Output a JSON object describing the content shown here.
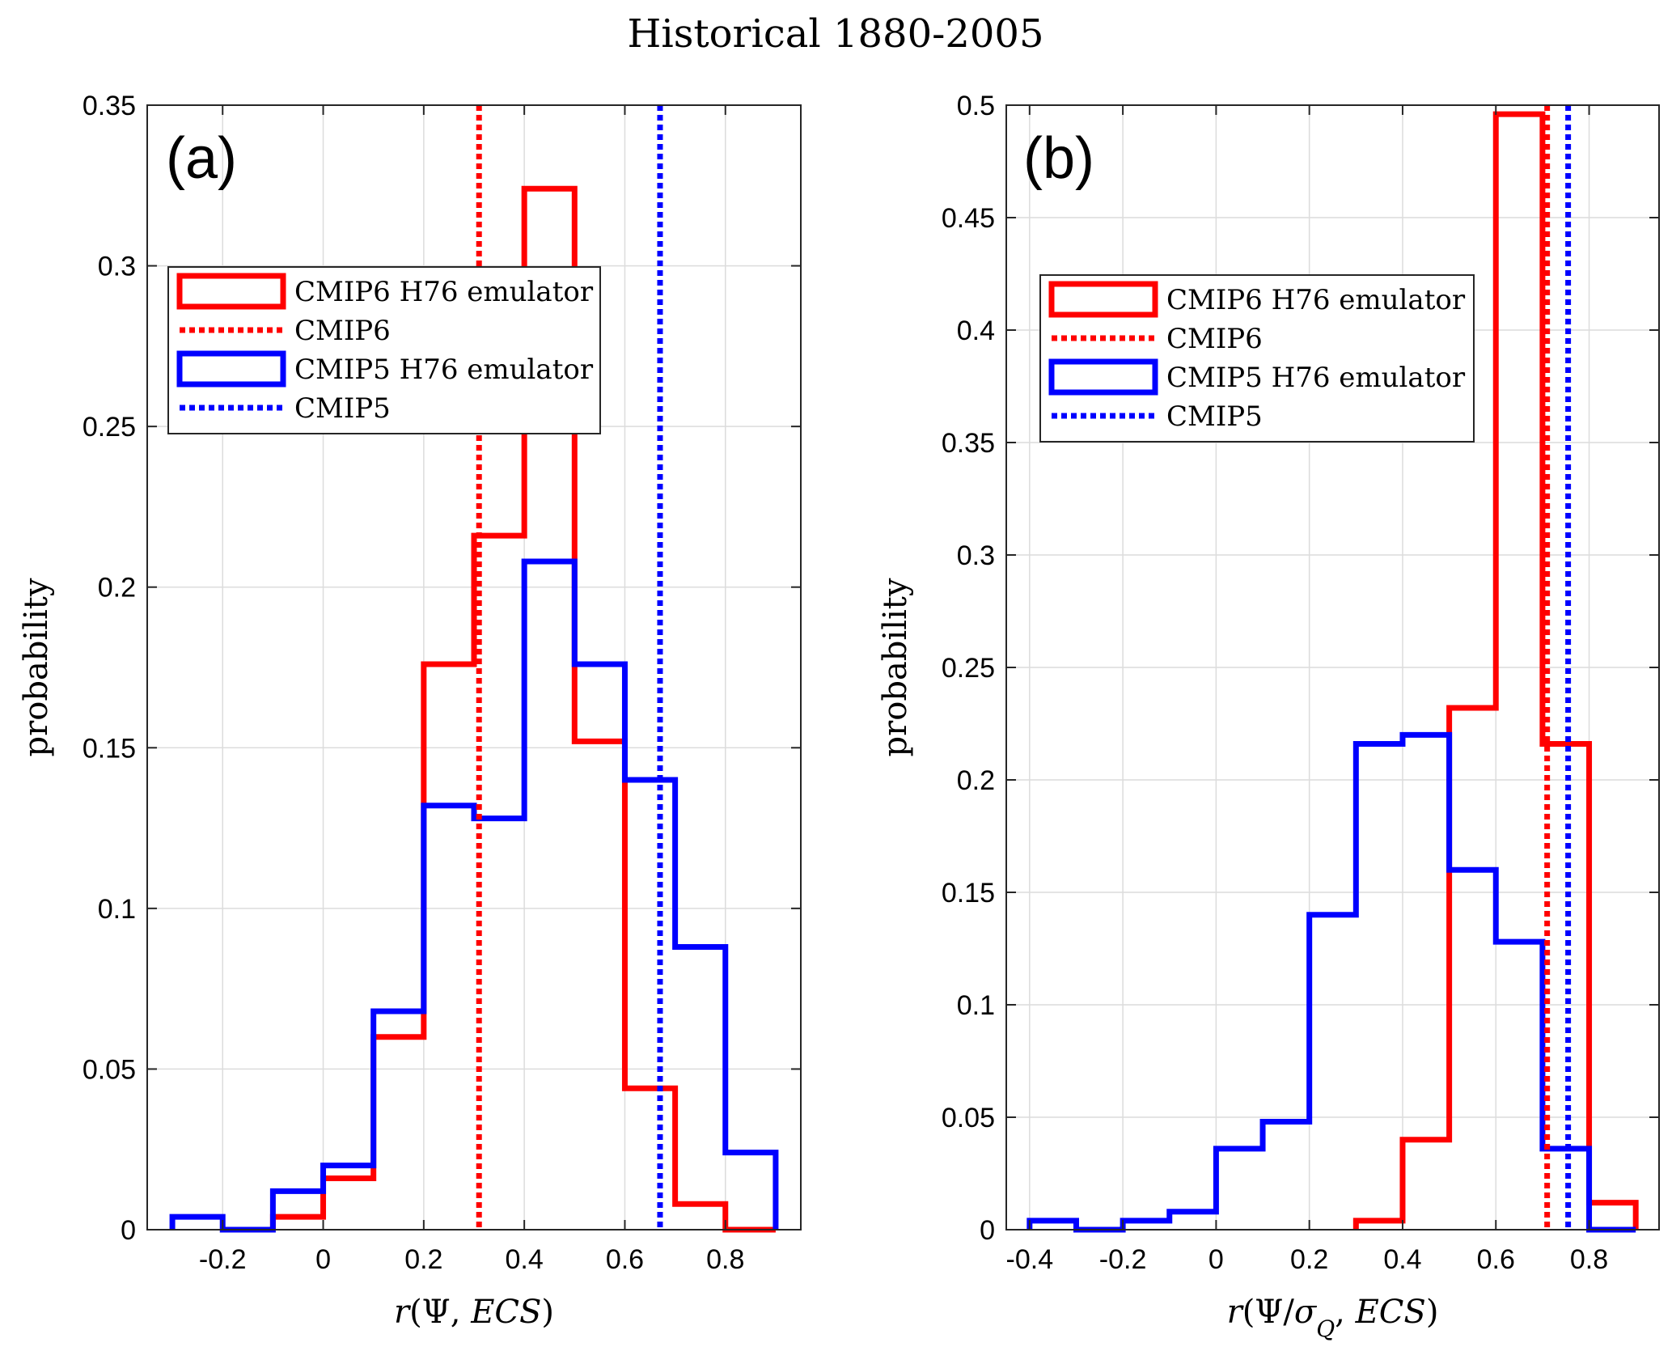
{
  "figure": {
    "title": "Historical 1880-2005"
  },
  "legend_entries": [
    {
      "label": "CMIP6 H76 emulator",
      "style": "box",
      "color": "#ff0000"
    },
    {
      "label": "CMIP6",
      "style": "dotted",
      "color": "#ff0000"
    },
    {
      "label": "CMIP5 H76 emulator",
      "style": "box",
      "color": "#0000ff"
    },
    {
      "label": "CMIP5",
      "style": "dotted",
      "color": "#0000ff"
    }
  ],
  "chart_data": [
    {
      "type": "histogram-step",
      "panel_label": "(a)",
      "xlabel": "r(Ψ, ECS)",
      "ylabel": "probability",
      "xlim": [
        -0.35,
        0.95
      ],
      "ylim": [
        0,
        0.35
      ],
      "xticks": [
        -0.2,
        0,
        0.2,
        0.4,
        0.6,
        0.8
      ],
      "xtick_labels": [
        "-0.2",
        "0",
        "0.2",
        "0.4",
        "0.6",
        "0.8"
      ],
      "yticks": [
        0,
        0.05,
        0.1,
        0.15,
        0.2,
        0.25,
        0.3,
        0.35
      ],
      "ytick_labels": [
        "0",
        "0.05",
        "0.1",
        "0.15",
        "0.2",
        "0.25",
        "0.3",
        "0.35"
      ],
      "grid": true,
      "bin_edges": [
        -0.3,
        -0.2,
        -0.1,
        0,
        0.1,
        0.2,
        0.3,
        0.4,
        0.5,
        0.6,
        0.7,
        0.8,
        0.9
      ],
      "series": [
        {
          "name": "CMIP6 H76 emulator",
          "color": "#ff0000",
          "values": [
            0,
            0,
            0.004,
            0.016,
            0.06,
            0.176,
            0.216,
            0.324,
            0.152,
            0.044,
            0.008,
            0
          ]
        },
        {
          "name": "CMIP5 H76 emulator",
          "color": "#0000ff",
          "values": [
            0.004,
            0,
            0.012,
            0.02,
            0.068,
            0.132,
            0.128,
            0.208,
            0.176,
            0.14,
            0.088,
            0.024
          ]
        }
      ],
      "vlines": [
        {
          "name": "CMIP6",
          "x": 0.31,
          "color": "#ff0000"
        },
        {
          "name": "CMIP5",
          "x": 0.67,
          "color": "#0000ff"
        }
      ],
      "legend_location": "upper-left"
    },
    {
      "type": "histogram-step",
      "panel_label": "(b)",
      "xlabel": "r(Ψ/σQ, ECS)",
      "ylabel": "probability",
      "xlim": [
        -0.45,
        0.95
      ],
      "ylim": [
        0,
        0.5
      ],
      "xticks": [
        -0.4,
        -0.2,
        0,
        0.2,
        0.4,
        0.6,
        0.8
      ],
      "xtick_labels": [
        "-0.4",
        "-0.2",
        "0",
        "0.2",
        "0.4",
        "0.6",
        "0.8"
      ],
      "yticks": [
        0,
        0.05,
        0.1,
        0.15,
        0.2,
        0.25,
        0.3,
        0.35,
        0.4,
        0.45,
        0.5
      ],
      "ytick_labels": [
        "0",
        "0.05",
        "0.1",
        "0.15",
        "0.2",
        "0.25",
        "0.3",
        "0.35",
        "0.4",
        "0.45",
        "0.5"
      ],
      "grid": true,
      "bin_edges": [
        -0.4,
        -0.3,
        -0.2,
        -0.1,
        0,
        0.1,
        0.2,
        0.3,
        0.4,
        0.5,
        0.6,
        0.7,
        0.8,
        0.9
      ],
      "series": [
        {
          "name": "CMIP6 H76 emulator",
          "color": "#ff0000",
          "values": [
            0,
            0,
            0,
            0,
            0,
            0,
            0,
            0.004,
            0.04,
            0.232,
            0.496,
            0.216,
            0.012
          ]
        },
        {
          "name": "CMIP5 H76 emulator",
          "color": "#0000ff",
          "values": [
            0.004,
            0,
            0.004,
            0.008,
            0.036,
            0.048,
            0.14,
            0.216,
            0.22,
            0.16,
            0.128,
            0.036,
            0
          ]
        }
      ],
      "vlines": [
        {
          "name": "CMIP6",
          "x": 0.71,
          "color": "#ff0000"
        },
        {
          "name": "CMIP5",
          "x": 0.755,
          "color": "#0000ff"
        }
      ],
      "legend_location": "upper-left"
    }
  ]
}
